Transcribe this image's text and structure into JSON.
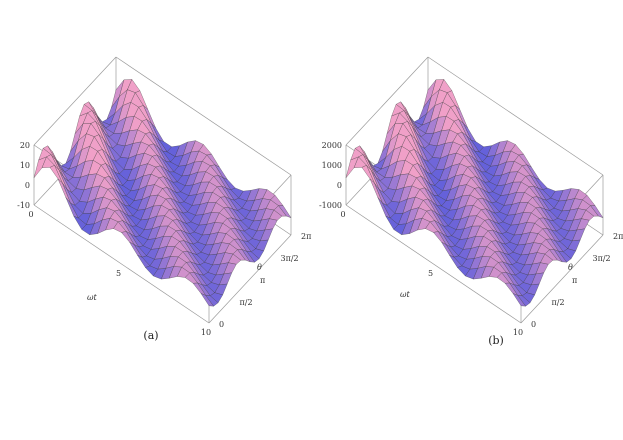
{
  "chart_data": [
    {
      "type": "surface3d",
      "caption": "(a)",
      "x_label": "ωt",
      "y_label": "θ",
      "x_ticks": [
        "0",
        "5",
        "10"
      ],
      "y_ticks": [
        "0",
        "π/2",
        "π",
        "3π/2",
        "2π"
      ],
      "z_ticks": [
        "20",
        "10",
        "0",
        "-10"
      ],
      "x_range": [
        0,
        10
      ],
      "y_range": [
        0,
        6.2832
      ],
      "z_range": [
        -10,
        20
      ],
      "z_amplitude": 10,
      "colors": {
        "surface_high": "#f0a0c8",
        "surface_low": "#3b4ee0",
        "mesh": "#333333"
      }
    },
    {
      "type": "surface3d",
      "caption": "(b)",
      "x_label": "ωt",
      "y_label": "θ",
      "x_ticks": [
        "0",
        "5",
        "10"
      ],
      "y_ticks": [
        "0",
        "π/2",
        "π",
        "3π/2",
        "2π"
      ],
      "z_ticks": [
        "2000",
        "1000",
        "0",
        "-1000"
      ],
      "x_range": [
        0,
        10
      ],
      "y_range": [
        0,
        6.2832
      ],
      "z_range": [
        -1000,
        2000
      ],
      "z_amplitude": 1000,
      "colors": {
        "surface_high": "#f0a0c8",
        "surface_low": "#3b4ee0",
        "mesh": "#333333"
      }
    }
  ]
}
